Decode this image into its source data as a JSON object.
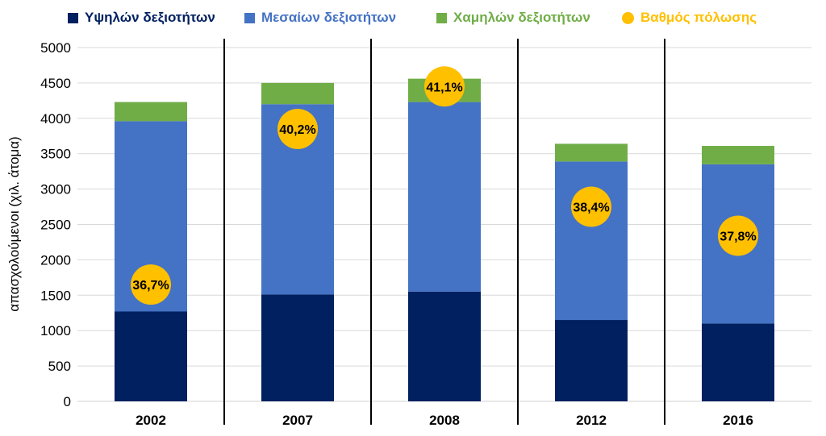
{
  "chart_data": {
    "type": "bar",
    "stacked": true,
    "categories": [
      "2002",
      "2007",
      "2008",
      "2012",
      "2016"
    ],
    "series": [
      {
        "name": "Υψηλών δεξιοτήτων",
        "color": "#002060",
        "values": [
          1270,
          1510,
          1550,
          1150,
          1100
        ]
      },
      {
        "name": "Μεσαίων δεξιοτήτων",
        "color": "#4472C4",
        "values": [
          2690,
          2690,
          2680,
          2240,
          2250
        ]
      },
      {
        "name": "Χαμηλών δεξιοτήτων",
        "color": "#70AD47",
        "values": [
          270,
          300,
          330,
          250,
          260
        ]
      }
    ],
    "overlay": {
      "name": "Βαθμός πόλωσης",
      "color": "#FFC000",
      "labels": [
        "36,7%",
        "40,2%",
        "41,1%",
        "38,4%",
        "37,8%"
      ],
      "marker_y": [
        1650,
        3850,
        4450,
        2750,
        2340
      ]
    },
    "ylabel": "απασχολούμενοι (χιλ. άτομα)",
    "ylim": [
      0,
      5000
    ],
    "yticks": [
      0,
      500,
      1000,
      1500,
      2000,
      2500,
      3000,
      3500,
      4000,
      4500,
      5000
    ],
    "grid": true,
    "legend": "top"
  }
}
